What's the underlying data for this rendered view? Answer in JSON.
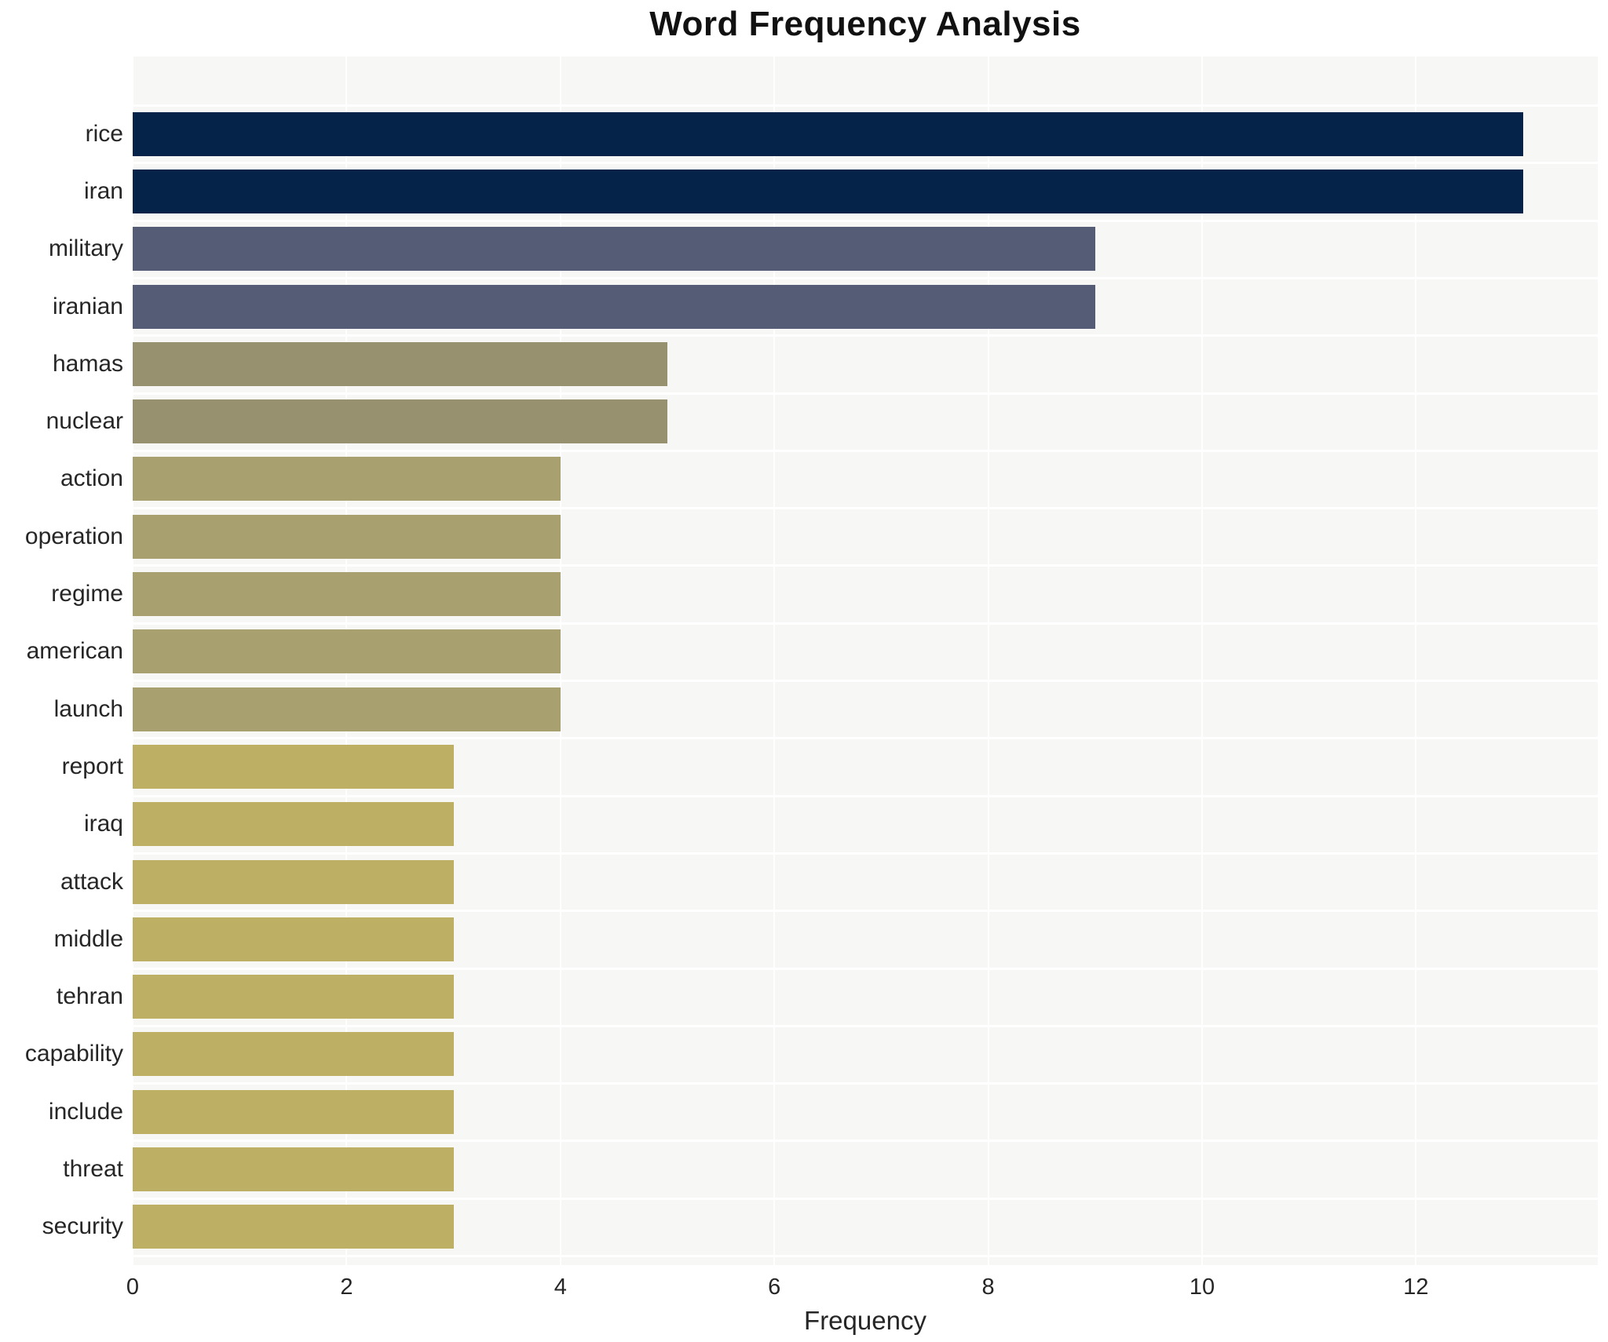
{
  "chart_data": {
    "type": "bar",
    "orientation": "horizontal",
    "title": "Word Frequency Analysis",
    "xlabel": "Frequency",
    "ylabel": "",
    "categories": [
      "rice",
      "iran",
      "military",
      "iranian",
      "hamas",
      "nuclear",
      "action",
      "operation",
      "regime",
      "american",
      "launch",
      "report",
      "iraq",
      "attack",
      "middle",
      "tehran",
      "capability",
      "include",
      "threat",
      "security"
    ],
    "values": [
      13,
      13,
      9,
      9,
      5,
      5,
      4,
      4,
      4,
      4,
      4,
      3,
      3,
      3,
      3,
      3,
      3,
      3,
      3,
      3
    ],
    "bar_colors": [
      "#052248",
      "#052248",
      "#545c76",
      "#545c76",
      "#98916f",
      "#98916f",
      "#a8a06e",
      "#a8a06e",
      "#a8a06e",
      "#a8a06e",
      "#a8a06e",
      "#bdb065",
      "#bdb065",
      "#bdb065",
      "#bdb065",
      "#bdb065",
      "#bdb065",
      "#bdb065",
      "#bdb065",
      "#bdb065"
    ],
    "x_ticks": [
      0,
      2,
      4,
      6,
      8,
      10,
      12
    ],
    "xlim": [
      0,
      13.7
    ],
    "grid": true,
    "legend": "none",
    "plot_bg": "#f7f7f5",
    "grid_color": "#ffffff"
  }
}
